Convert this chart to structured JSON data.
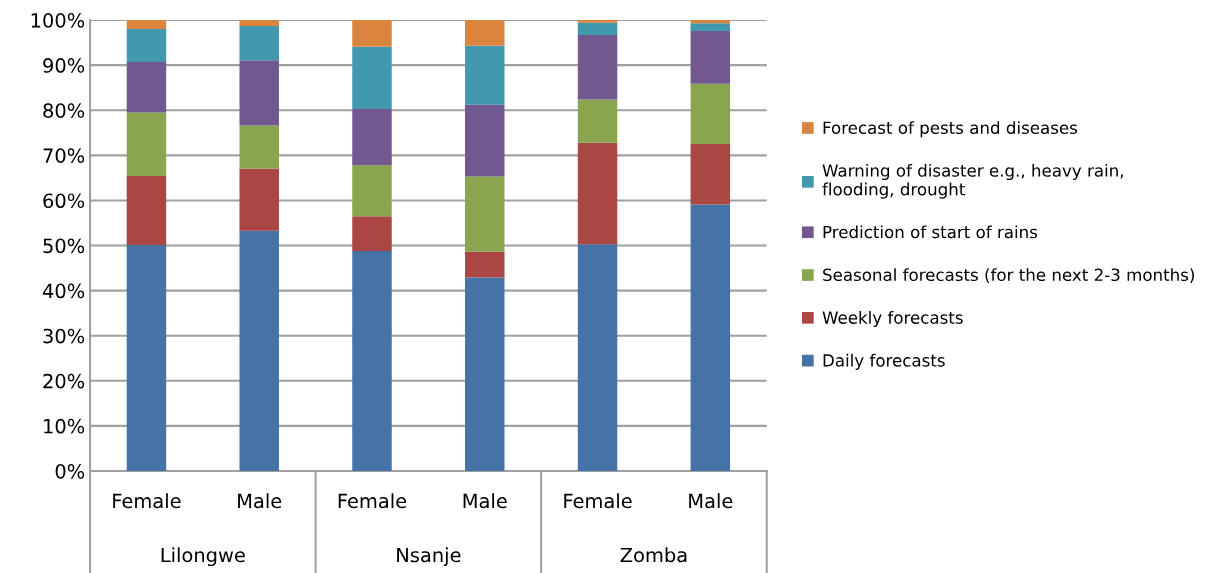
{
  "chart_data": {
    "type": "bar",
    "stacked": true,
    "categories": [
      "Female",
      "Male",
      "Female",
      "Male",
      "Female",
      "Male"
    ],
    "annotations": [
      "Lilongwe",
      "Nsanje",
      "Zomba"
    ],
    "series": [
      {
        "name": "Daily forecasts",
        "color": "#4572a7",
        "values": [
          50.1,
          53.3,
          48.8,
          42.9,
          50.3,
          59.1
        ]
      },
      {
        "name": "Weekly forecasts",
        "color": "#aa4643",
        "values": [
          15.3,
          13.7,
          7.7,
          5.7,
          22.5,
          13.4
        ]
      },
      {
        "name": "Seasonal forecasts (for the next 2-3 months)",
        "color": "#89a54e",
        "values": [
          14.1,
          9.6,
          11.3,
          16.7,
          9.6,
          13.4
        ]
      },
      {
        "name": "Prediction of start of rains",
        "color": "#71588f",
        "values": [
          11.2,
          14.5,
          12.5,
          15.9,
          14.3,
          11.7
        ]
      },
      {
        "name": "Warning of disaster e.g., heavy rain,\nflooding, drought",
        "color": "#4198af",
        "values": [
          7.3,
          7.6,
          13.8,
          13.1,
          2.7,
          1.7
        ]
      },
      {
        "name": "Forecast of pests and diseases",
        "color": "#db843d",
        "values": [
          2.0,
          1.3,
          5.9,
          5.7,
          0.6,
          0.7
        ]
      }
    ],
    "ylim": [
      0,
      100
    ],
    "yticks": [
      {
        "value": 0,
        "label": "0%"
      },
      {
        "value": 10,
        "label": "10%"
      },
      {
        "value": 20,
        "label": "20%"
      },
      {
        "value": 30,
        "label": "30%"
      },
      {
        "value": 40,
        "label": "40%"
      },
      {
        "value": 50,
        "label": "50%"
      },
      {
        "value": 60,
        "label": "60%"
      },
      {
        "value": 70,
        "label": "70%"
      },
      {
        "value": 80,
        "label": "80%"
      },
      {
        "value": 90,
        "label": "90%"
      },
      {
        "value": 100,
        "label": "100%"
      }
    ],
    "grid": "y",
    "legend": "right"
  }
}
